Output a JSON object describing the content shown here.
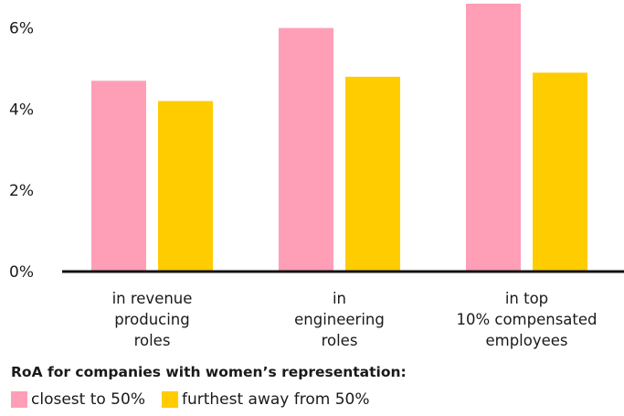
{
  "chart_data": {
    "type": "bar",
    "categories": [
      [
        "in revenue",
        "producing",
        "roles"
      ],
      [
        "in",
        "engineering",
        "roles"
      ],
      [
        "in top",
        "10% compensated",
        "employees"
      ]
    ],
    "series": [
      {
        "name": "closest to 50%",
        "values": [
          4.7,
          6.0,
          6.6
        ],
        "color": "#ff9eb7"
      },
      {
        "name": "furthest away from 50%",
        "values": [
          4.2,
          4.8,
          4.9
        ],
        "color": "#ffcc00"
      }
    ],
    "ylim": [
      0,
      6.6
    ],
    "yticks": [
      0,
      2,
      4,
      6
    ],
    "ytick_labels": [
      "0%",
      "2%",
      "4%",
      "6%"
    ],
    "grid": false,
    "legend_title": "RoA for companies with women’s representation:",
    "legend_position": "bottom"
  }
}
